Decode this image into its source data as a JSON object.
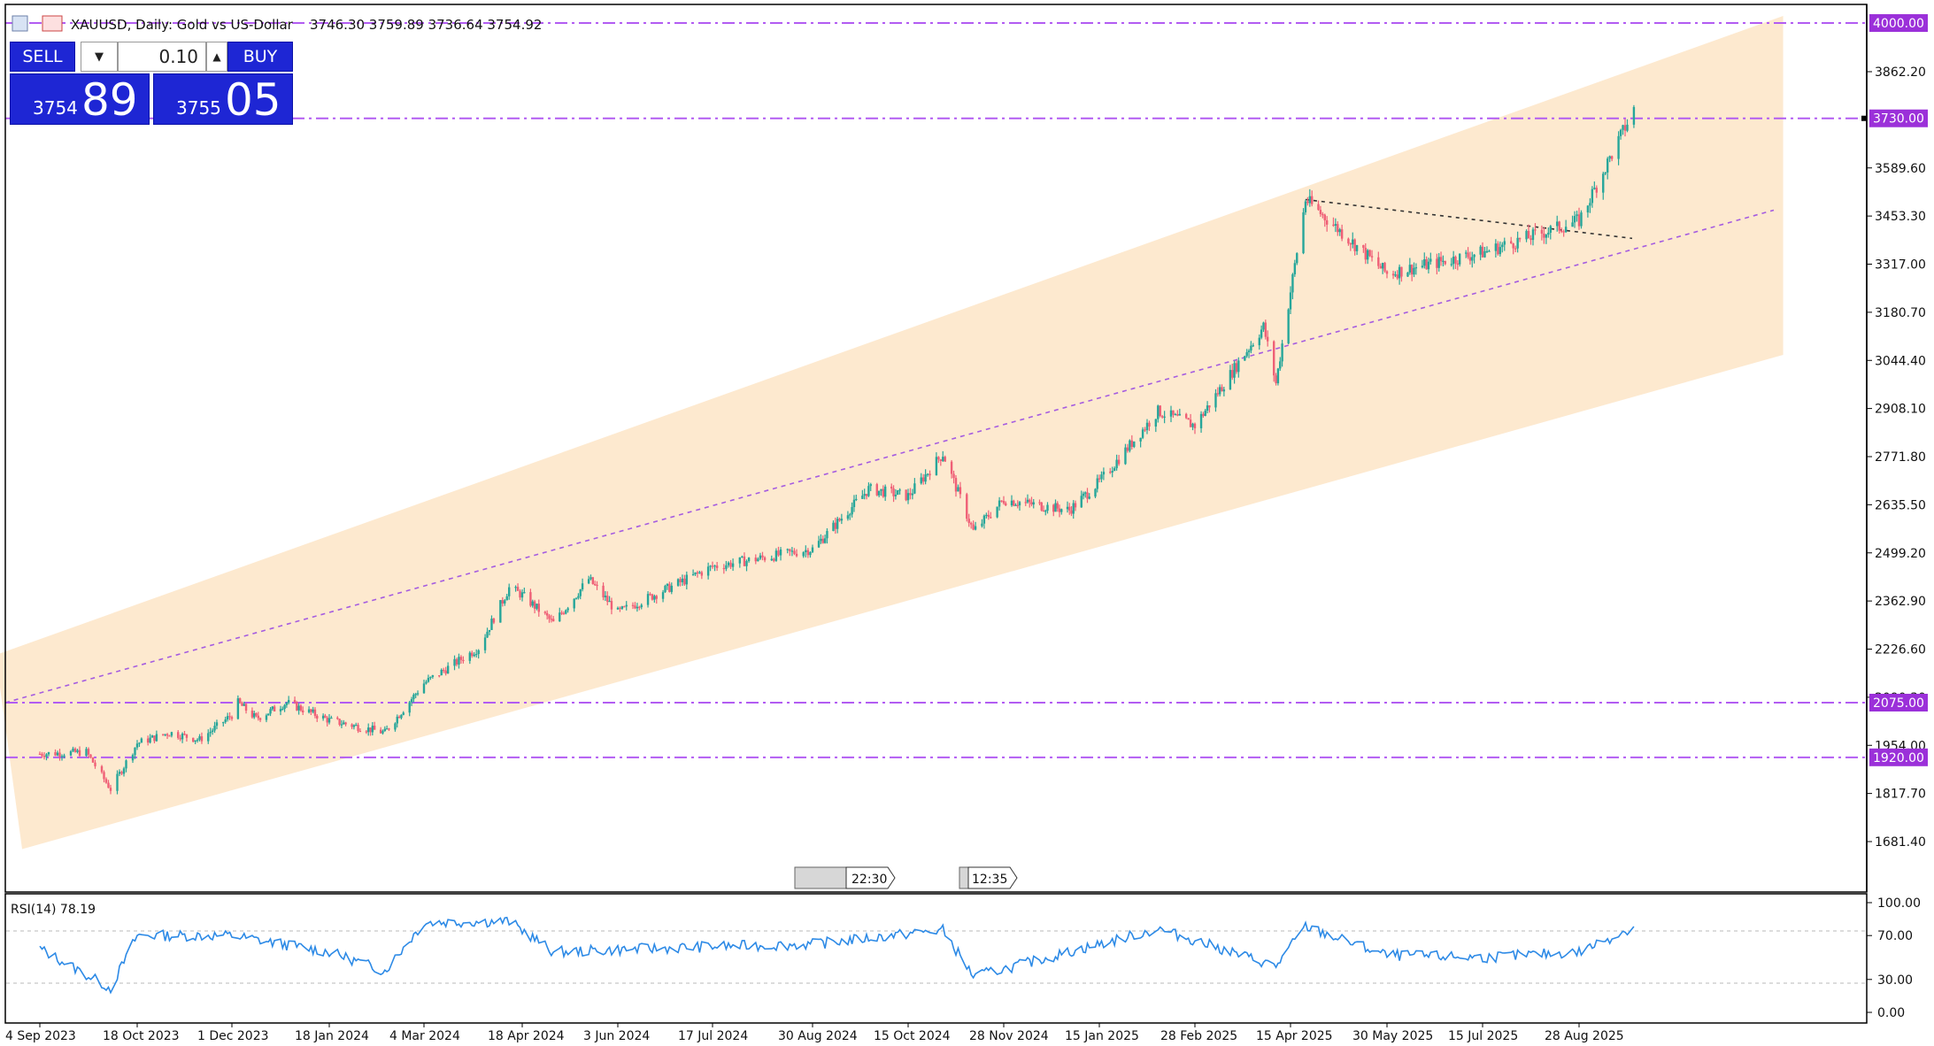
{
  "header": {
    "symbol_text": "XAUUSD, Daily: Gold vs US-Dollar",
    "ohlc_text": "3746.30 3759.89 3736.64 3754.92"
  },
  "trade_panel": {
    "sell_label": "SELL",
    "buy_label": "BUY",
    "volume": "0.10",
    "sell_price_small": "3754",
    "sell_price_big": "89",
    "buy_price_small": "3755",
    "buy_price_big": "05"
  },
  "price_axis": {
    "ticks": [
      "3862.20",
      "3589.60",
      "3453.30",
      "3317.00",
      "3180.70",
      "3044.40",
      "2908.10",
      "2771.80",
      "2635.50",
      "2499.20",
      "2362.90",
      "2226.60",
      "2090.30",
      "1954.00",
      "1817.70",
      "1681.40"
    ],
    "labels": [
      "4000.00",
      "3730.00",
      "2075.00",
      "1920.00"
    ],
    "label_color": "#9b30d9"
  },
  "time_axis": {
    "ticks": [
      "4 Sep 2023",
      "18 Oct 2023",
      "1 Dec 2023",
      "18 Jan 2024",
      "4 Mar 2024",
      "18 Apr 2024",
      "3 Jun 2024",
      "17 Jul 2024",
      "30 Aug 2024",
      "15 Oct 2024",
      "28 Nov 2024",
      "15 Jan 2025",
      "28 Feb 2025",
      "15 Apr 2025",
      "30 May 2025",
      "15 Jul 2025",
      "28 Aug 2025"
    ]
  },
  "markers": {
    "time1": "22:30",
    "time2": "12:35"
  },
  "rsi": {
    "label": "RSI(14) 78.19",
    "ticks": [
      "100.00",
      "70.00",
      "30.00",
      "0.00"
    ],
    "line_color": "#2d8ae6"
  },
  "colors": {
    "bull": "#26a69a",
    "bear": "#ef5f76",
    "channel_fill": "#fde9cf",
    "level_line": "#b25cf2",
    "button": "#1e26d4"
  },
  "chart_data": {
    "type": "candlestick",
    "timeframe": "Daily",
    "ylim": [
      1681.4,
      4000
    ],
    "price_key_points": [
      {
        "date": "4 Sep 2023",
        "price": 1930
      },
      {
        "date": "25 Sep 2023",
        "price": 1935
      },
      {
        "date": "6 Oct 2023",
        "price": 1830
      },
      {
        "date": "18 Oct 2023",
        "price": 1960
      },
      {
        "date": "2 Nov 2023",
        "price": 1990
      },
      {
        "date": "16 Nov 2023",
        "price": 1970
      },
      {
        "date": "1 Dec 2023",
        "price": 2040
      },
      {
        "date": "4 Dec 2023",
        "price": 2075
      },
      {
        "date": "13 Dec 2023",
        "price": 2030
      },
      {
        "date": "28 Dec 2023",
        "price": 2075
      },
      {
        "date": "18 Jan 2024",
        "price": 2025
      },
      {
        "date": "14 Feb 2024",
        "price": 1990
      },
      {
        "date": "4 Mar 2024",
        "price": 2130
      },
      {
        "date": "29 Mar 2024",
        "price": 2230
      },
      {
        "date": "12 Apr 2024",
        "price": 2400
      },
      {
        "date": "18 Apr 2024",
        "price": 2380
      },
      {
        "date": "3 May 2024",
        "price": 2300
      },
      {
        "date": "20 May 2024",
        "price": 2425
      },
      {
        "date": "3 Jun 2024",
        "price": 2330
      },
      {
        "date": "17 Jul 2024",
        "price": 2460
      },
      {
        "date": "30 Aug 2024",
        "price": 2510
      },
      {
        "date": "26 Sep 2024",
        "price": 2680
      },
      {
        "date": "15 Oct 2024",
        "price": 2660
      },
      {
        "date": "31 Oct 2024",
        "price": 2780
      },
      {
        "date": "14 Nov 2024",
        "price": 2560
      },
      {
        "date": "28 Nov 2024",
        "price": 2650
      },
      {
        "date": "31 Dec 2024",
        "price": 2620
      },
      {
        "date": "15 Jan 2025",
        "price": 2700
      },
      {
        "date": "11 Feb 2025",
        "price": 2900
      },
      {
        "date": "28 Feb 2025",
        "price": 2860
      },
      {
        "date": "2 Apr 2025",
        "price": 3140
      },
      {
        "date": "8 Apr 2025",
        "price": 2980
      },
      {
        "date": "22 Apr 2025",
        "price": 3500
      },
      {
        "date": "30 May 2025",
        "price": 3290
      },
      {
        "date": "15 Jul 2025",
        "price": 3350
      },
      {
        "date": "28 Aug 2025",
        "price": 3440
      },
      {
        "date": "22 Sep 2025",
        "price": 3755
      }
    ],
    "rsi_key_points": [
      {
        "date": "4 Sep 2023",
        "value": 58
      },
      {
        "date": "6 Oct 2023",
        "value": 22
      },
      {
        "date": "18 Oct 2023",
        "value": 70
      },
      {
        "date": "1 Dec 2023",
        "value": 70
      },
      {
        "date": "18 Jan 2024",
        "value": 55
      },
      {
        "date": "14 Feb 2024",
        "value": 38
      },
      {
        "date": "4 Mar 2024",
        "value": 82
      },
      {
        "date": "12 Apr 2024",
        "value": 83
      },
      {
        "date": "3 May 2024",
        "value": 55
      },
      {
        "date": "17 Jul 2024",
        "value": 60
      },
      {
        "date": "30 Aug 2024",
        "value": 62
      },
      {
        "date": "31 Oct 2024",
        "value": 75
      },
      {
        "date": "14 Nov 2024",
        "value": 33
      },
      {
        "date": "15 Jan 2025",
        "value": 62
      },
      {
        "date": "11 Feb 2025",
        "value": 76
      },
      {
        "date": "8 Apr 2025",
        "value": 42
      },
      {
        "date": "22 Apr 2025",
        "value": 78
      },
      {
        "date": "30 May 2025",
        "value": 52
      },
      {
        "date": "15 Jul 2025",
        "value": 50
      },
      {
        "date": "28 Aug 2025",
        "value": 55
      },
      {
        "date": "22 Sep 2025",
        "value": 78
      }
    ]
  }
}
